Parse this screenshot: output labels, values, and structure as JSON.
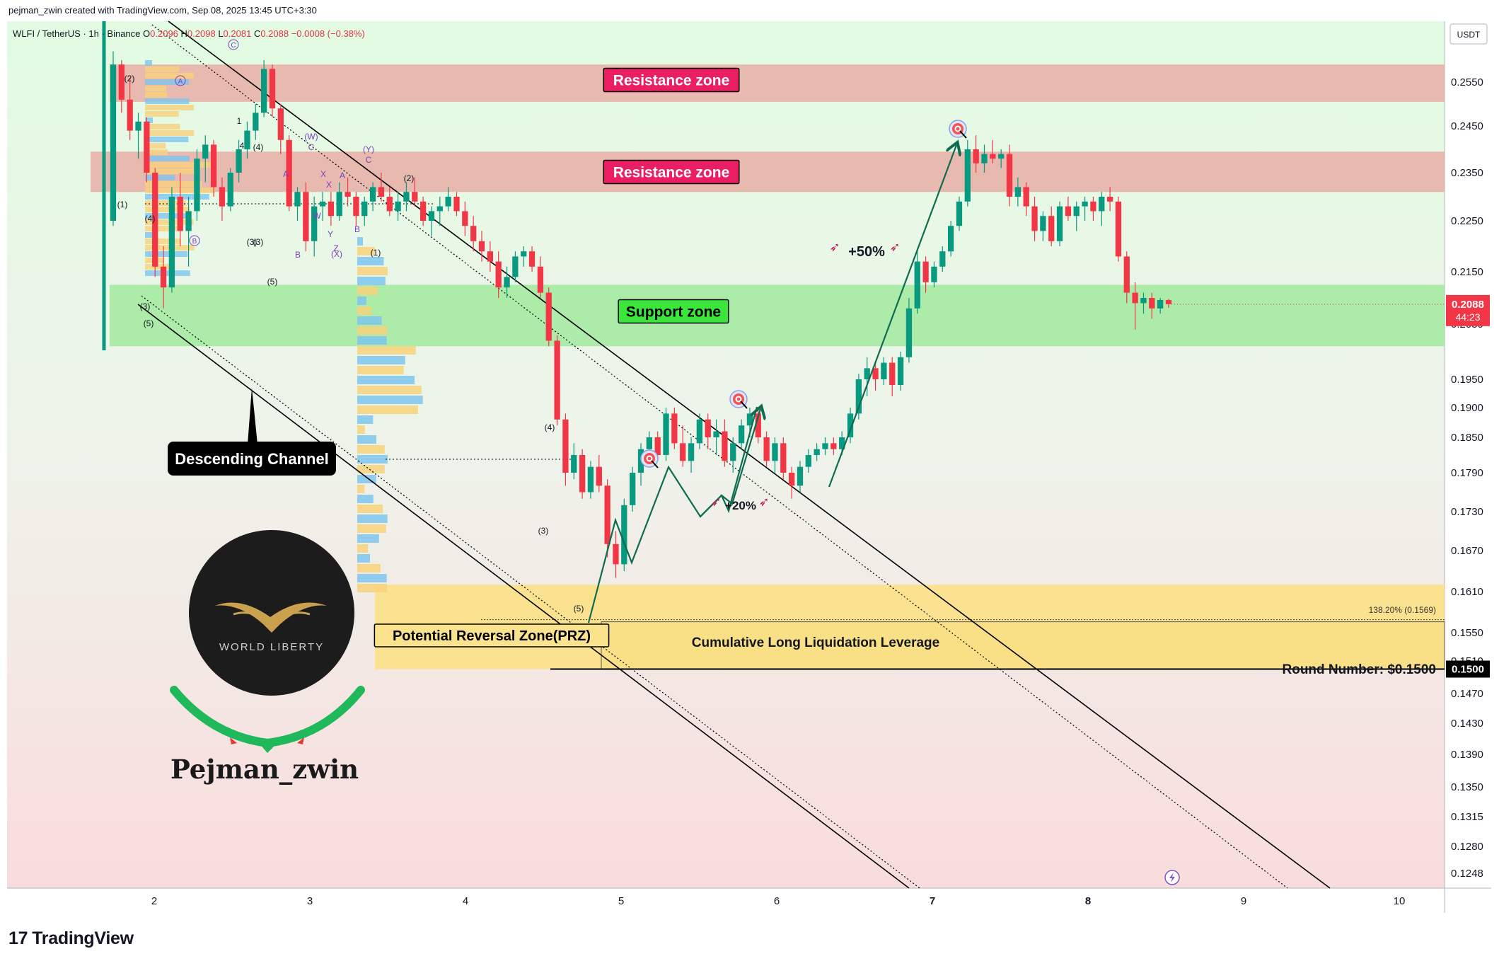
{
  "header": {
    "credit": "pejman_zwin created with TradingView.com, Sep 08, 2025 13:45 UTC+3:30",
    "symbol": "WLFI / TetherUS · 1h · Binance",
    "ohlc": {
      "O": "0.2096",
      "H": "0.2098",
      "L": "0.2081",
      "C": "0.2088",
      "change": "−0.0008 (−0.38%)"
    }
  },
  "footer": {
    "logo_mark": "17",
    "logo_text": "TradingView"
  },
  "colors": {
    "up": "#089981",
    "down": "#f23645",
    "resistance": "#e8a9a0",
    "support": "#9ee89a",
    "prz": "#fbe28c",
    "label_pink": "#e91e63",
    "label_green": "#3be53b",
    "arrow": "#0f6b4f"
  },
  "chart_data": {
    "type": "candlestick",
    "currency_label": "USDT",
    "x_ticks": [
      "2",
      "3",
      "4",
      "5",
      "6",
      "7",
      "8",
      "9",
      "10"
    ],
    "y_ticks": [
      "0.2550",
      "0.2450",
      "0.2350",
      "0.2250",
      "0.2150",
      "0.2050",
      "0.1950",
      "0.1900",
      "0.1850",
      "0.1790",
      "0.1730",
      "0.1670",
      "0.1610",
      "0.1550",
      "0.1510",
      "0.1470",
      "0.1430",
      "0.1390",
      "0.1350",
      "0.1315",
      "0.1280",
      "0.1248"
    ],
    "current_price": "0.2088",
    "countdown": "44:23",
    "round_number_tag": "0.1500",
    "zones": [
      {
        "name": "Resistance zone",
        "low": 0.2505,
        "high": 0.259
      },
      {
        "name": "Resistance zone",
        "low": 0.231,
        "high": 0.2395
      },
      {
        "name": "Support zone",
        "low": 0.201,
        "high": 0.2125
      },
      {
        "name": "Potential Reversal Zone(PRZ)",
        "low": 0.15,
        "high": 0.162
      }
    ],
    "annotations": {
      "resistance": "Resistance zone",
      "support": "Support zone",
      "channel": "Descending Channel",
      "prz": "Potential Reversal Zone(PRZ)",
      "liquidation": "Cumulative Long Liquidation Leverage",
      "round_number": "Round Number: $0.1500",
      "fib": "138.20% (0.1569)",
      "gain50": "+50%",
      "gain20": "+20%",
      "author": "Pejman_zwin",
      "brand": "WORLD LIBERTY"
    },
    "wave_labels": [
      "(2)",
      "(1)",
      "(4)",
      "(3)",
      "(5)",
      "(3)",
      "(5)",
      "(4)",
      "(3)",
      "(W)",
      "(Y)",
      "(2)",
      "(X)",
      "(1)",
      "(4)",
      "(3)",
      "(5)",
      "A",
      "B",
      "C",
      "W",
      "X",
      "Y",
      "Z",
      "X",
      "A",
      "B",
      "C",
      "1",
      "4"
    ],
    "circled_labels": [
      "A",
      "B",
      "C"
    ],
    "candles": [
      [
        0.225,
        0.262,
        0.224,
        0.259
      ],
      [
        0.259,
        0.26,
        0.248,
        0.251
      ],
      [
        0.251,
        0.256,
        0.242,
        0.244
      ],
      [
        0.244,
        0.248,
        0.238,
        0.246
      ],
      [
        0.246,
        0.247,
        0.233,
        0.235
      ],
      [
        0.235,
        0.236,
        0.214,
        0.216
      ],
      [
        0.216,
        0.22,
        0.208,
        0.212
      ],
      [
        0.212,
        0.232,
        0.211,
        0.23
      ],
      [
        0.23,
        0.235,
        0.22,
        0.223
      ],
      [
        0.223,
        0.23,
        0.216,
        0.227
      ],
      [
        0.227,
        0.24,
        0.225,
        0.238
      ],
      [
        0.238,
        0.243,
        0.233,
        0.241
      ],
      [
        0.241,
        0.242,
        0.23,
        0.232
      ],
      [
        0.232,
        0.234,
        0.225,
        0.228
      ],
      [
        0.228,
        0.236,
        0.227,
        0.235
      ],
      [
        0.235,
        0.242,
        0.233,
        0.24
      ],
      [
        0.24,
        0.246,
        0.238,
        0.244
      ],
      [
        0.244,
        0.25,
        0.242,
        0.248
      ],
      [
        0.248,
        0.26,
        0.247,
        0.258
      ],
      [
        0.258,
        0.259,
        0.247,
        0.249
      ],
      [
        0.249,
        0.25,
        0.239,
        0.242
      ],
      [
        0.242,
        0.243,
        0.227,
        0.228
      ],
      [
        0.228,
        0.232,
        0.225,
        0.231
      ],
      [
        0.231,
        0.233,
        0.219,
        0.221
      ],
      [
        0.221,
        0.23,
        0.218,
        0.228
      ],
      [
        0.228,
        0.231,
        0.225,
        0.229
      ],
      [
        0.229,
        0.231,
        0.224,
        0.226
      ],
      [
        0.226,
        0.233,
        0.225,
        0.231
      ],
      [
        0.231,
        0.234,
        0.228,
        0.23
      ],
      [
        0.23,
        0.231,
        0.224,
        0.226
      ],
      [
        0.226,
        0.23,
        0.224,
        0.229
      ],
      [
        0.229,
        0.233,
        0.227,
        0.232
      ],
      [
        0.232,
        0.235,
        0.229,
        0.23
      ],
      [
        0.23,
        0.232,
        0.226,
        0.227
      ],
      [
        0.227,
        0.231,
        0.225,
        0.229
      ],
      [
        0.229,
        0.233,
        0.227,
        0.231
      ],
      [
        0.231,
        0.234,
        0.228,
        0.229
      ],
      [
        0.229,
        0.23,
        0.224,
        0.225
      ],
      [
        0.225,
        0.228,
        0.222,
        0.227
      ],
      [
        0.227,
        0.23,
        0.224,
        0.228
      ],
      [
        0.228,
        0.232,
        0.227,
        0.23
      ],
      [
        0.23,
        0.231,
        0.226,
        0.227
      ],
      [
        0.227,
        0.229,
        0.222,
        0.224
      ],
      [
        0.224,
        0.226,
        0.219,
        0.221
      ],
      [
        0.221,
        0.223,
        0.217,
        0.219
      ],
      [
        0.219,
        0.221,
        0.215,
        0.217
      ],
      [
        0.217,
        0.219,
        0.21,
        0.212
      ],
      [
        0.212,
        0.216,
        0.21,
        0.214
      ],
      [
        0.214,
        0.219,
        0.213,
        0.218
      ],
      [
        0.218,
        0.22,
        0.216,
        0.219
      ],
      [
        0.219,
        0.22,
        0.215,
        0.216
      ],
      [
        0.216,
        0.218,
        0.21,
        0.211
      ],
      [
        0.211,
        0.212,
        0.201,
        0.202
      ],
      [
        0.202,
        0.203,
        0.187,
        0.188
      ],
      [
        0.188,
        0.189,
        0.177,
        0.179
      ],
      [
        0.179,
        0.184,
        0.178,
        0.182
      ],
      [
        0.182,
        0.183,
        0.175,
        0.176
      ],
      [
        0.176,
        0.181,
        0.175,
        0.18
      ],
      [
        0.18,
        0.182,
        0.176,
        0.177
      ],
      [
        0.177,
        0.178,
        0.166,
        0.168
      ],
      [
        0.168,
        0.17,
        0.163,
        0.165
      ],
      [
        0.165,
        0.175,
        0.164,
        0.174
      ],
      [
        0.174,
        0.18,
        0.173,
        0.179
      ],
      [
        0.179,
        0.184,
        0.177,
        0.183
      ],
      [
        0.183,
        0.186,
        0.181,
        0.185
      ],
      [
        0.185,
        0.186,
        0.181,
        0.182
      ],
      [
        0.182,
        0.19,
        0.181,
        0.189
      ],
      [
        0.189,
        0.19,
        0.183,
        0.184
      ],
      [
        0.184,
        0.187,
        0.18,
        0.181
      ],
      [
        0.181,
        0.185,
        0.179,
        0.184
      ],
      [
        0.184,
        0.189,
        0.183,
        0.188
      ],
      [
        0.188,
        0.189,
        0.183,
        0.185
      ],
      [
        0.185,
        0.188,
        0.182,
        0.186
      ],
      [
        0.186,
        0.188,
        0.18,
        0.181
      ],
      [
        0.181,
        0.185,
        0.179,
        0.184
      ],
      [
        0.184,
        0.188,
        0.183,
        0.187
      ],
      [
        0.187,
        0.19,
        0.185,
        0.189
      ],
      [
        0.189,
        0.19,
        0.184,
        0.185
      ],
      [
        0.185,
        0.186,
        0.18,
        0.181
      ],
      [
        0.181,
        0.185,
        0.179,
        0.184
      ],
      [
        0.184,
        0.185,
        0.178,
        0.179
      ],
      [
        0.179,
        0.18,
        0.175,
        0.177
      ],
      [
        0.177,
        0.181,
        0.176,
        0.18
      ],
      [
        0.18,
        0.183,
        0.179,
        0.182
      ],
      [
        0.182,
        0.184,
        0.181,
        0.183
      ],
      [
        0.183,
        0.185,
        0.182,
        0.184
      ],
      [
        0.184,
        0.185,
        0.182,
        0.183
      ],
      [
        0.183,
        0.186,
        0.182,
        0.185
      ],
      [
        0.185,
        0.19,
        0.184,
        0.189
      ],
      [
        0.189,
        0.196,
        0.188,
        0.195
      ],
      [
        0.195,
        0.199,
        0.192,
        0.197
      ],
      [
        0.197,
        0.198,
        0.193,
        0.195
      ],
      [
        0.195,
        0.199,
        0.194,
        0.198
      ],
      [
        0.198,
        0.199,
        0.192,
        0.194
      ],
      [
        0.194,
        0.2,
        0.193,
        0.199
      ],
      [
        0.199,
        0.21,
        0.198,
        0.208
      ],
      [
        0.208,
        0.219,
        0.207,
        0.217
      ],
      [
        0.217,
        0.218,
        0.211,
        0.213
      ],
      [
        0.213,
        0.217,
        0.212,
        0.216
      ],
      [
        0.216,
        0.22,
        0.215,
        0.219
      ],
      [
        0.219,
        0.225,
        0.218,
        0.224
      ],
      [
        0.224,
        0.23,
        0.223,
        0.229
      ],
      [
        0.229,
        0.242,
        0.228,
        0.24
      ],
      [
        0.24,
        0.243,
        0.235,
        0.237
      ],
      [
        0.237,
        0.241,
        0.235,
        0.239
      ],
      [
        0.239,
        0.242,
        0.237,
        0.238
      ],
      [
        0.238,
        0.24,
        0.236,
        0.239
      ],
      [
        0.239,
        0.241,
        0.228,
        0.23
      ],
      [
        0.23,
        0.234,
        0.228,
        0.232
      ],
      [
        0.232,
        0.233,
        0.226,
        0.228
      ],
      [
        0.228,
        0.23,
        0.221,
        0.223
      ],
      [
        0.223,
        0.227,
        0.221,
        0.226
      ],
      [
        0.226,
        0.228,
        0.22,
        0.221
      ],
      [
        0.221,
        0.229,
        0.22,
        0.228
      ],
      [
        0.228,
        0.23,
        0.225,
        0.226
      ],
      [
        0.226,
        0.229,
        0.223,
        0.228
      ],
      [
        0.228,
        0.23,
        0.225,
        0.229
      ],
      [
        0.229,
        0.23,
        0.225,
        0.227
      ],
      [
        0.227,
        0.231,
        0.224,
        0.23
      ],
      [
        0.23,
        0.232,
        0.227,
        0.229
      ],
      [
        0.229,
        0.23,
        0.217,
        0.218
      ],
      [
        0.218,
        0.219,
        0.209,
        0.211
      ],
      [
        0.211,
        0.213,
        0.204,
        0.209
      ],
      [
        0.209,
        0.211,
        0.207,
        0.21
      ],
      [
        0.21,
        0.211,
        0.206,
        0.208
      ],
      [
        0.208,
        0.21,
        0.207,
        0.2096
      ],
      [
        0.2096,
        0.2098,
        0.2081,
        0.2088
      ]
    ]
  }
}
